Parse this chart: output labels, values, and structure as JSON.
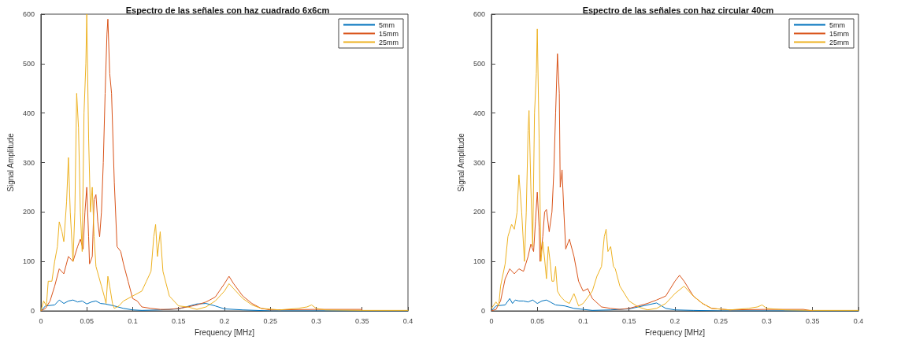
{
  "chart_data": [
    {
      "type": "line",
      "title": "Espectro de las señales con haz cuadrado 6x6cm",
      "xlabel": "Frequency [MHz]",
      "ylabel": "Signal Amplitude",
      "xlim": [
        0,
        0.4
      ],
      "ylim": [
        0,
        600
      ],
      "xticks": [
        0,
        0.05,
        0.1,
        0.15,
        0.2,
        0.25,
        0.3,
        0.35,
        0.4
      ],
      "yticks": [
        0,
        100,
        200,
        300,
        400,
        500,
        600
      ],
      "grid": false,
      "legend": "top right",
      "marker": "none",
      "line_style": "solid",
      "series": [
        {
          "name": "5mm",
          "color": "#0072bd",
          "x": [
            0,
            0.005,
            0.015,
            0.02,
            0.025,
            0.03,
            0.035,
            0.04,
            0.045,
            0.05,
            0.055,
            0.06,
            0.065,
            0.07,
            0.08,
            0.09,
            0.1,
            0.11,
            0.13,
            0.15,
            0.17,
            0.18,
            0.19,
            0.2,
            0.22,
            0.25,
            0.4
          ],
          "values": [
            0,
            10,
            12,
            22,
            15,
            20,
            22,
            18,
            20,
            14,
            18,
            20,
            15,
            14,
            10,
            5,
            2,
            1,
            2,
            4,
            14,
            15,
            10,
            4,
            2,
            0,
            0
          ]
        },
        {
          "name": "15mm",
          "color": "#d95319",
          "x": [
            0,
            0.005,
            0.01,
            0.015,
            0.02,
            0.025,
            0.03,
            0.035,
            0.04,
            0.043,
            0.046,
            0.048,
            0.05,
            0.052,
            0.053,
            0.056,
            0.058,
            0.06,
            0.062,
            0.064,
            0.066,
            0.068,
            0.07,
            0.072,
            0.073,
            0.075,
            0.077,
            0.08,
            0.083,
            0.087,
            0.09,
            0.095,
            0.1,
            0.105,
            0.11,
            0.12,
            0.13,
            0.14,
            0.15,
            0.16,
            0.17,
            0.18,
            0.19,
            0.2,
            0.205,
            0.21,
            0.22,
            0.23,
            0.24,
            0.25,
            0.3,
            0.35
          ],
          "values": [
            0,
            5,
            20,
            50,
            85,
            75,
            110,
            100,
            130,
            145,
            125,
            200,
            250,
            150,
            95,
            110,
            225,
            235,
            180,
            150,
            200,
            300,
            440,
            560,
            590,
            480,
            440,
            260,
            130,
            120,
            95,
            60,
            25,
            20,
            8,
            5,
            3,
            3,
            5,
            8,
            12,
            18,
            28,
            55,
            70,
            55,
            30,
            15,
            5,
            2,
            3,
            3
          ]
        },
        {
          "name": "25mm",
          "color": "#edb120",
          "x": [
            0,
            0.003,
            0.006,
            0.008,
            0.012,
            0.015,
            0.018,
            0.02,
            0.023,
            0.025,
            0.028,
            0.03,
            0.032,
            0.035,
            0.037,
            0.039,
            0.041,
            0.043,
            0.045,
            0.047,
            0.049,
            0.05,
            0.052,
            0.054,
            0.056,
            0.058,
            0.06,
            0.063,
            0.066,
            0.069,
            0.071,
            0.073,
            0.075,
            0.078,
            0.08,
            0.085,
            0.09,
            0.1,
            0.11,
            0.115,
            0.12,
            0.123,
            0.125,
            0.127,
            0.13,
            0.133,
            0.14,
            0.15,
            0.16,
            0.17,
            0.18,
            0.19,
            0.2,
            0.205,
            0.21,
            0.22,
            0.23,
            0.24,
            0.26,
            0.28,
            0.29,
            0.295,
            0.3,
            0.31,
            0.35,
            0.4
          ],
          "values": [
            0,
            20,
            10,
            60,
            60,
            100,
            130,
            180,
            160,
            140,
            220,
            310,
            200,
            100,
            200,
            440,
            370,
            200,
            120,
            400,
            500,
            600,
            350,
            200,
            250,
            150,
            90,
            70,
            50,
            30,
            15,
            70,
            50,
            15,
            5,
            10,
            20,
            30,
            40,
            60,
            80,
            150,
            175,
            110,
            160,
            80,
            30,
            10,
            8,
            3,
            8,
            20,
            40,
            55,
            45,
            25,
            12,
            5,
            2,
            5,
            8,
            12,
            5,
            2,
            1,
            1
          ]
        }
      ]
    },
    {
      "type": "line",
      "title": "Espectro de las señales con haz circular 40cm",
      "xlabel": "Frequency [MHz]",
      "ylabel": "Signal Amplitude",
      "xlim": [
        0,
        0.4
      ],
      "ylim": [
        0,
        600
      ],
      "xticks": [
        0,
        0.05,
        0.1,
        0.15,
        0.2,
        0.25,
        0.3,
        0.35,
        0.4
      ],
      "yticks": [
        0,
        100,
        200,
        300,
        400,
        500,
        600
      ],
      "grid": false,
      "legend": "top right",
      "marker": "none",
      "line_style": "solid",
      "series": [
        {
          "name": "5mm",
          "color": "#0072bd",
          "x": [
            0,
            0.005,
            0.015,
            0.02,
            0.023,
            0.026,
            0.03,
            0.035,
            0.04,
            0.045,
            0.05,
            0.055,
            0.06,
            0.065,
            0.07,
            0.08,
            0.09,
            0.1,
            0.11,
            0.13,
            0.15,
            0.17,
            0.18,
            0.19,
            0.2,
            0.22,
            0.25,
            0.4
          ],
          "values": [
            0,
            10,
            12,
            25,
            15,
            22,
            20,
            20,
            18,
            22,
            15,
            20,
            22,
            17,
            12,
            10,
            5,
            3,
            1,
            2,
            4,
            12,
            16,
            5,
            2,
            1,
            0,
            0
          ]
        },
        {
          "name": "15mm",
          "color": "#d95319",
          "x": [
            0,
            0.005,
            0.01,
            0.015,
            0.02,
            0.025,
            0.03,
            0.035,
            0.04,
            0.043,
            0.046,
            0.048,
            0.05,
            0.052,
            0.053,
            0.056,
            0.058,
            0.06,
            0.063,
            0.066,
            0.068,
            0.07,
            0.072,
            0.074,
            0.075,
            0.077,
            0.079,
            0.081,
            0.085,
            0.09,
            0.095,
            0.1,
            0.105,
            0.11,
            0.12,
            0.13,
            0.14,
            0.15,
            0.16,
            0.17,
            0.18,
            0.19,
            0.2,
            0.205,
            0.21,
            0.22,
            0.23,
            0.24,
            0.26,
            0.3,
            0.34,
            0.35
          ],
          "values": [
            0,
            3,
            20,
            65,
            85,
            75,
            85,
            80,
            110,
            135,
            120,
            180,
            240,
            170,
            100,
            150,
            200,
            205,
            160,
            200,
            280,
            400,
            520,
            440,
            250,
            285,
            200,
            125,
            145,
            110,
            60,
            40,
            45,
            25,
            8,
            5,
            3,
            5,
            10,
            15,
            22,
            30,
            60,
            72,
            60,
            30,
            15,
            5,
            2,
            3,
            3,
            0
          ]
        },
        {
          "name": "25mm",
          "color": "#edb120",
          "x": [
            0,
            0.005,
            0.008,
            0.01,
            0.015,
            0.018,
            0.022,
            0.025,
            0.028,
            0.03,
            0.033,
            0.036,
            0.038,
            0.04,
            0.041,
            0.043,
            0.045,
            0.047,
            0.049,
            0.05,
            0.052,
            0.054,
            0.056,
            0.058,
            0.06,
            0.062,
            0.064,
            0.066,
            0.068,
            0.07,
            0.072,
            0.075,
            0.08,
            0.085,
            0.09,
            0.095,
            0.1,
            0.11,
            0.115,
            0.12,
            0.123,
            0.125,
            0.127,
            0.13,
            0.133,
            0.135,
            0.14,
            0.15,
            0.16,
            0.17,
            0.18,
            0.19,
            0.2,
            0.21,
            0.22,
            0.23,
            0.24,
            0.26,
            0.28,
            0.29,
            0.295,
            0.3,
            0.32,
            0.35,
            0.4
          ],
          "values": [
            5,
            18,
            10,
            50,
            95,
            150,
            175,
            165,
            200,
            275,
            200,
            100,
            200,
            365,
            405,
            250,
            130,
            400,
            480,
            570,
            350,
            100,
            140,
            105,
            65,
            130,
            100,
            60,
            60,
            90,
            40,
            30,
            20,
            15,
            35,
            10,
            15,
            40,
            70,
            90,
            150,
            165,
            120,
            130,
            90,
            85,
            50,
            20,
            8,
            2,
            5,
            15,
            35,
            50,
            30,
            15,
            5,
            2,
            5,
            8,
            12,
            5,
            2,
            1,
            1
          ]
        }
      ]
    }
  ]
}
